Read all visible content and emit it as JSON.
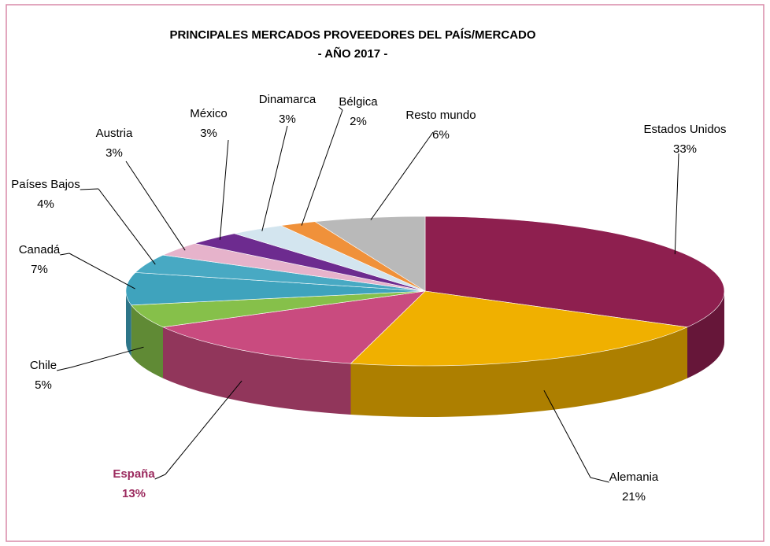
{
  "chart_data": {
    "type": "pie3d",
    "title": "PRINCIPALES MERCADOS PROVEEDORES DEL PAÍS/MERCADO",
    "subtitle": "- AÑO 2017 -",
    "categories": [
      "Estados Unidos",
      "Alemania",
      "España",
      "Chile",
      "Canadá",
      "Países Bajos",
      "Austria",
      "México",
      "Dinamarca",
      "Bélgica",
      "Resto mundo"
    ],
    "values": [
      33,
      21,
      13,
      5,
      7,
      4,
      3,
      3,
      3,
      2,
      6
    ],
    "value_labels": [
      "33%",
      "21%",
      "13%",
      "5%",
      "7%",
      "4%",
      "3%",
      "3%",
      "3%",
      "2%",
      "6%"
    ],
    "colors": [
      "#8e1f4f",
      "#f0b000",
      "#c94b7f",
      "#86c04a",
      "#3fa3bd",
      "#48a9c3",
      "#e6b3cb",
      "#6d2b8f",
      "#d3e5ef",
      "#f0913a",
      "#b9b9b9"
    ],
    "label_colors": [
      "#000000",
      "#000000",
      "#9b2a5e",
      "#000000",
      "#000000",
      "#000000",
      "#000000",
      "#000000",
      "#000000",
      "#000000",
      "#000000"
    ]
  }
}
